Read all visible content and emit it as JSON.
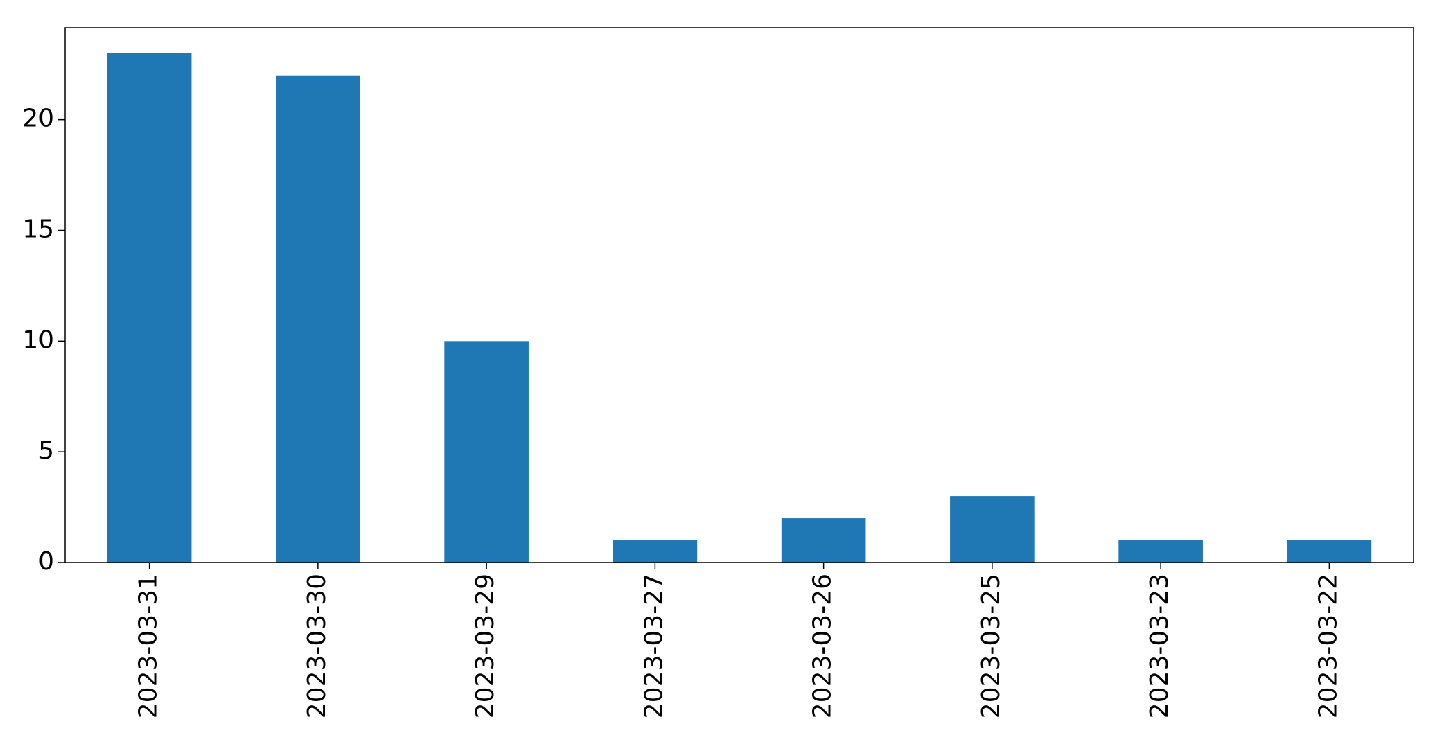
{
  "chart_data": {
    "type": "bar",
    "title": "",
    "xlabel": "",
    "ylabel": "",
    "categories": [
      "2023-03-31",
      "2023-03-30",
      "2023-03-29",
      "2023-03-27",
      "2023-03-26",
      "2023-03-25",
      "2023-03-23",
      "2023-03-22"
    ],
    "values": [
      23,
      22,
      10,
      1,
      2,
      3,
      1,
      1
    ],
    "ylim": [
      0,
      24.15
    ],
    "yticks": [
      0,
      5,
      10,
      15,
      20
    ],
    "grid": false,
    "legend": "none",
    "bar_color": "#1f77b4",
    "axis_color": "#000000"
  }
}
